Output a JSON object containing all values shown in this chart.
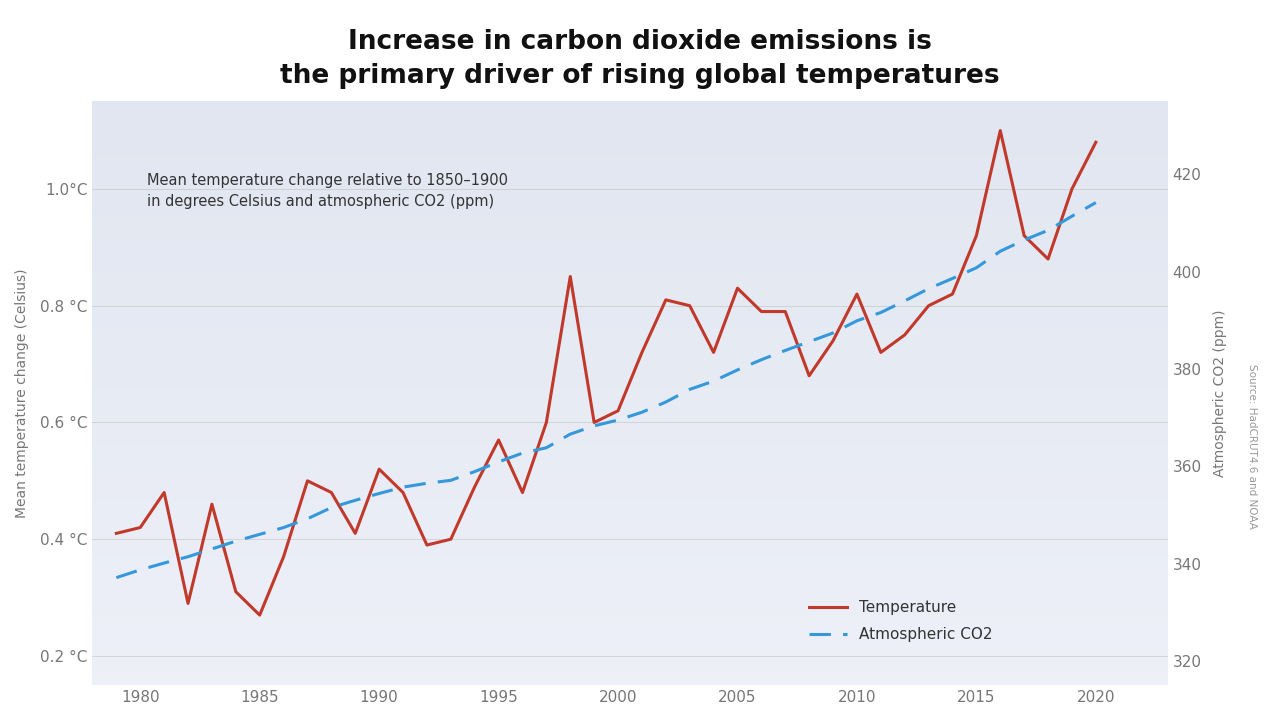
{
  "title": "Increase in carbon dioxide emissions is\nthe primary driver of rising global temperatures",
  "subtitle": "Mean temperature change relative to 1850–1900\nin degrees Celsius and atmospheric CO2 (ppm)",
  "ylabel_left": "Mean temperature change (Celsius)",
  "ylabel_right": "Atmospheric CO2 (ppm)",
  "source_text": "Source: HadCRUT4.6 and NOAA",
  "legend_temp": "Temperature",
  "legend_co2": "Atmospheric CO2",
  "years": [
    1979,
    1980,
    1981,
    1982,
    1983,
    1984,
    1985,
    1986,
    1987,
    1988,
    1989,
    1990,
    1991,
    1992,
    1993,
    1994,
    1995,
    1996,
    1997,
    1998,
    1999,
    2000,
    2001,
    2002,
    2003,
    2004,
    2005,
    2006,
    2007,
    2008,
    2009,
    2010,
    2011,
    2012,
    2013,
    2014,
    2015,
    2016,
    2017,
    2018,
    2019,
    2020
  ],
  "temp": [
    0.41,
    0.42,
    0.48,
    0.29,
    0.46,
    0.31,
    0.27,
    0.37,
    0.5,
    0.48,
    0.41,
    0.52,
    0.48,
    0.39,
    0.4,
    0.49,
    0.57,
    0.48,
    0.6,
    0.85,
    0.6,
    0.62,
    0.72,
    0.81,
    0.8,
    0.72,
    0.83,
    0.79,
    0.79,
    0.68,
    0.74,
    0.82,
    0.72,
    0.75,
    0.8,
    0.82,
    0.92,
    1.1,
    0.92,
    0.88,
    1.0,
    1.08
  ],
  "co2": [
    337.1,
    338.7,
    340.1,
    341.4,
    343.0,
    344.6,
    346.0,
    347.4,
    349.2,
    351.5,
    353.0,
    354.4,
    355.7,
    356.5,
    357.1,
    358.9,
    360.9,
    362.7,
    363.8,
    366.6,
    368.3,
    369.5,
    371.1,
    373.2,
    375.8,
    377.5,
    379.8,
    381.9,
    383.8,
    385.6,
    387.4,
    389.9,
    391.6,
    394.0,
    396.5,
    398.6,
    400.8,
    404.2,
    406.5,
    408.5,
    411.4,
    414.2
  ],
  "temp_color": "#C0392B",
  "co2_color": "#3498DB",
  "ylim_left": [
    0.15,
    1.15
  ],
  "ylim_right": [
    315,
    435
  ],
  "xlim": [
    1978,
    2023
  ],
  "yticks_left": [
    0.2,
    0.4,
    0.6,
    0.8,
    1.0
  ],
  "ytick_labels_left": [
    "0.2 °C",
    "0.4 °C",
    "0.6 °C",
    "0.8 °C",
    "1.0°C"
  ],
  "yticks_right": [
    320,
    340,
    360,
    380,
    400,
    420
  ],
  "xticks": [
    1980,
    1985,
    1990,
    1995,
    2000,
    2005,
    2010,
    2015,
    2020
  ]
}
